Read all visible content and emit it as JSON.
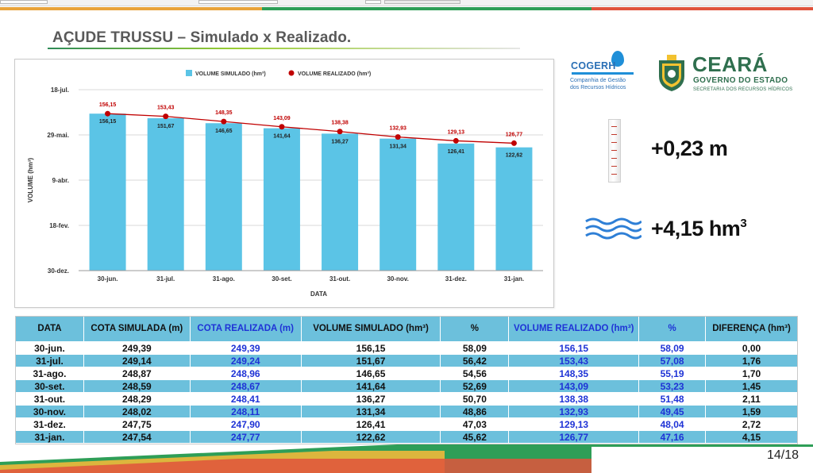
{
  "title": "AÇUDE TRUSSU – Simulado x Realizado.",
  "colors": {
    "simulated_bar": "#5bc4e6",
    "realized_line": "#c00000",
    "table_blue": "#6cc0dc",
    "blue_text": "#1f33d6",
    "green": "#2e8b57"
  },
  "chart_data": {
    "type": "bar",
    "xlabel": "DATA",
    "ylabel": "VOLUME (hm³)",
    "categories": [
      "30-jun.",
      "31-jul.",
      "31-ago.",
      "30-set.",
      "31-out.",
      "30-nov.",
      "31-dez.",
      "31-jan."
    ],
    "y_ticks": [
      "30-dez.",
      "18-fev.",
      "9-abr.",
      "29-mai.",
      "18-jul."
    ],
    "ylim": [
      0,
      180
    ],
    "grid": true,
    "legend_position": "top",
    "series": [
      {
        "name": "VOLUME SIMULADO (hm³)",
        "type": "bar",
        "color": "#5bc4e6",
        "values": [
          156.15,
          151.67,
          146.65,
          141.64,
          136.27,
          131.34,
          126.41,
          122.62
        ],
        "labels": [
          "156,15",
          "151,67",
          "146,65",
          "141,64",
          "136,27",
          "131,34",
          "126,41",
          "122,62"
        ]
      },
      {
        "name": "VOLUME REALIZADO (hm³)",
        "type": "line",
        "color": "#c00000",
        "values": [
          156.15,
          153.43,
          148.35,
          143.09,
          138.38,
          132.93,
          129.13,
          126.77
        ],
        "labels": [
          "156,15",
          "153,43",
          "148,35",
          "143,09",
          "138,38",
          "132,93",
          "129,13",
          "126,77"
        ]
      }
    ]
  },
  "logos": {
    "cogerh": {
      "name": "COGERH",
      "line1": "Companhia de Gestão",
      "line2": "dos Recursos Hídricos"
    },
    "ceara": {
      "name": "CEARÁ",
      "line1": "GOVERNO DO ESTADO",
      "line2": "SECRETARIA DOS RECURSOS HÍDRICOS"
    }
  },
  "stats": {
    "cota_diff": "+0,23 m",
    "volume_diff": "+4,15 hm",
    "volume_unit_sup": "3"
  },
  "table": {
    "headers": [
      "DATA",
      "COTA SIMULADA (m)",
      "COTA REALIZADA (m)",
      "VOLUME SIMULADO (hm³)",
      "%",
      "VOLUME REALIZADO (hm³)",
      "%",
      "DIFERENÇA (hm³)"
    ],
    "rows": [
      [
        "30-jun.",
        "249,39",
        "249,39",
        "156,15",
        "58,09",
        "156,15",
        "58,09",
        "0,00"
      ],
      [
        "31-jul.",
        "249,14",
        "249,24",
        "151,67",
        "56,42",
        "153,43",
        "57,08",
        "1,76"
      ],
      [
        "31-ago.",
        "248,87",
        "248,96",
        "146,65",
        "54,56",
        "148,35",
        "55,19",
        "1,70"
      ],
      [
        "30-set.",
        "248,59",
        "248,67",
        "141,64",
        "52,69",
        "143,09",
        "53,23",
        "1,45"
      ],
      [
        "31-out.",
        "248,29",
        "248,41",
        "136,27",
        "50,70",
        "138,38",
        "51,48",
        "2,11"
      ],
      [
        "30-nov.",
        "248,02",
        "248,11",
        "131,34",
        "48,86",
        "132,93",
        "49,45",
        "1,59"
      ],
      [
        "31-dez.",
        "247,75",
        "247,90",
        "126,41",
        "47,03",
        "129,13",
        "48,04",
        "2,72"
      ],
      [
        "31-jan.",
        "247,54",
        "247,77",
        "122,62",
        "45,62",
        "126,77",
        "47,16",
        "4,15"
      ]
    ]
  },
  "page_number": "14/18"
}
